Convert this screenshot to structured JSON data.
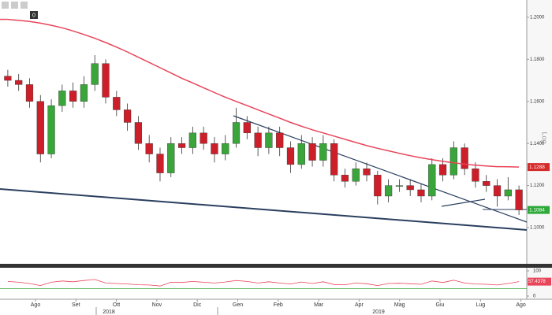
{
  "chart_data": {
    "type": "candlestick",
    "badge": "0",
    "scale_label": "Log",
    "ylim": [
      1.0828,
      1.2082
    ],
    "yticks": [
      {
        "value": 1.1,
        "label": "1.1000"
      },
      {
        "value": 1.12,
        "label": "1.1200"
      },
      {
        "value": 1.14,
        "label": "1.1400"
      },
      {
        "value": 1.16,
        "label": "1.1600"
      },
      {
        "value": 1.18,
        "label": "1.1800"
      },
      {
        "value": 1.2,
        "label": "1.2000"
      }
    ],
    "months": [
      "Ago",
      "Set",
      "Ott",
      "Nov",
      "Dic",
      "Gen",
      "Feb",
      "Mar",
      "Apr",
      "Mag",
      "Giu",
      "Lug",
      "Ago"
    ],
    "years": [
      "2018",
      "2019"
    ],
    "open": [
      1.172,
      1.17,
      1.168,
      1.16,
      1.135,
      1.158,
      1.165,
      1.16,
      1.168,
      1.178,
      1.162,
      1.156,
      1.15,
      1.14,
      1.135,
      1.126,
      1.14,
      1.138,
      1.145,
      1.14,
      1.135,
      1.14,
      1.15,
      1.145,
      1.138,
      1.145,
      1.138,
      1.13,
      1.14,
      1.132,
      1.14,
      1.125,
      1.122,
      1.128,
      1.125,
      1.115,
      1.12,
      1.12,
      1.118,
      1.115,
      1.13,
      1.125,
      1.138,
      1.128,
      1.122,
      1.12,
      1.115,
      1.118
    ],
    "high": [
      1.175,
      1.173,
      1.171,
      1.163,
      1.161,
      1.168,
      1.169,
      1.172,
      1.182,
      1.18,
      1.165,
      1.159,
      1.153,
      1.144,
      1.138,
      1.143,
      1.143,
      1.148,
      1.148,
      1.143,
      1.144,
      1.157,
      1.153,
      1.148,
      1.148,
      1.148,
      1.141,
      1.144,
      1.143,
      1.144,
      1.142,
      1.128,
      1.131,
      1.131,
      1.127,
      1.123,
      1.123,
      1.123,
      1.121,
      1.133,
      1.133,
      1.141,
      1.14,
      1.131,
      1.125,
      1.123,
      1.124,
      1.12
    ],
    "low": [
      1.167,
      1.165,
      1.157,
      1.131,
      1.133,
      1.155,
      1.157,
      1.157,
      1.165,
      1.159,
      1.153,
      1.146,
      1.137,
      1.131,
      1.122,
      1.124,
      1.135,
      1.135,
      1.137,
      1.131,
      1.132,
      1.138,
      1.142,
      1.134,
      1.135,
      1.134,
      1.126,
      1.128,
      1.129,
      1.129,
      1.122,
      1.119,
      1.12,
      1.122,
      1.111,
      1.112,
      1.117,
      1.115,
      1.112,
      1.113,
      1.122,
      1.123,
      1.125,
      1.119,
      1.117,
      1.11,
      1.113,
      1.106
    ],
    "close": [
      1.17,
      1.168,
      1.16,
      1.135,
      1.158,
      1.165,
      1.16,
      1.168,
      1.178,
      1.162,
      1.156,
      1.15,
      1.14,
      1.135,
      1.126,
      1.14,
      1.138,
      1.145,
      1.14,
      1.135,
      1.14,
      1.15,
      1.145,
      1.138,
      1.145,
      1.138,
      1.13,
      1.14,
      1.132,
      1.14,
      1.125,
      1.122,
      1.128,
      1.125,
      1.115,
      1.12,
      1.12,
      1.118,
      1.115,
      1.13,
      1.125,
      1.138,
      1.128,
      1.122,
      1.12,
      1.115,
      1.118,
      1.1084
    ],
    "up_color": "#3aa53a",
    "down_color": "#cc1f2a",
    "ma": {
      "color": "#e8455a",
      "values": [
        1.199,
        1.1985,
        1.198,
        1.1972,
        1.1962,
        1.195,
        1.1935,
        1.1918,
        1.19,
        1.188,
        1.1858,
        1.1835,
        1.181,
        1.1785,
        1.176,
        1.1735,
        1.171,
        1.1688,
        1.1665,
        1.1642,
        1.162,
        1.16,
        1.158,
        1.156,
        1.154,
        1.152,
        1.15,
        1.1482,
        1.1465,
        1.145,
        1.1435,
        1.142,
        1.1405,
        1.139,
        1.1377,
        1.1365,
        1.1353,
        1.1342,
        1.1332,
        1.1323,
        1.1315,
        1.1308,
        1.1302,
        1.1297,
        1.1293,
        1.129,
        1.1289,
        1.1288
      ]
    },
    "price_tags": [
      {
        "value": 1.1288,
        "label": "1.1288",
        "color": "#d42a2a"
      },
      {
        "value": 1.1084,
        "label": "1.1084",
        "color": "#2faa3a"
      }
    ],
    "oscillator": {
      "color": "#e8455a",
      "ylim": [
        0,
        100
      ],
      "yticks": [
        0,
        100
      ],
      "level": 30,
      "values": [
        58,
        55,
        50,
        42,
        55,
        60,
        57,
        62,
        66,
        52,
        50,
        48,
        45,
        44,
        40,
        55,
        54,
        58,
        55,
        52,
        56,
        62,
        58,
        52,
        57,
        52,
        48,
        56,
        50,
        57,
        46,
        45,
        52,
        49,
        42,
        50,
        51,
        49,
        47,
        60,
        54,
        63,
        52,
        48,
        47,
        44,
        50,
        57.4378
      ],
      "value_label": "57.4378"
    }
  }
}
